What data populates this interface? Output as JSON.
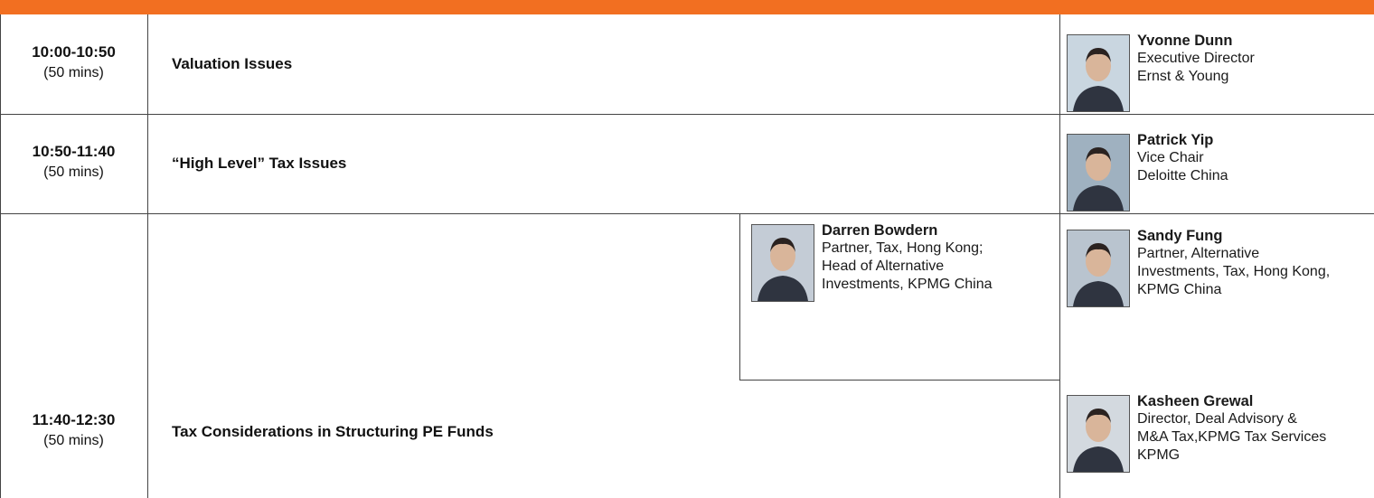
{
  "rows": [
    {
      "time": "10:00-10:50",
      "duration": "(50 mins)",
      "topic": "Valuation Issues",
      "speakers": [
        {
          "name": "Yvonne Dunn",
          "lines": [
            "Executive Director",
            "Ernst & Young"
          ]
        }
      ]
    },
    {
      "time": "10:50-11:40",
      "duration": "(50 mins)",
      "topic": "“High Level” Tax Issues",
      "speakers": [
        {
          "name": "Patrick Yip",
          "lines": [
            "Vice Chair",
            "Deloitte China"
          ]
        }
      ]
    },
    {
      "time": "11:40-12:30",
      "duration": "(50 mins)",
      "topic": "Tax Considerations in Structuring PE Funds",
      "speakers": [
        {
          "name": "Darren Bowdern",
          "lines": [
            "Partner, Tax, Hong Kong;",
            "Head of Alternative",
            "Investments, KPMG China"
          ]
        },
        {
          "name": "Sandy Fung",
          "lines": [
            "Partner, Alternative",
            "Investments, Tax, Hong Kong,",
            "KPMG China"
          ]
        },
        {
          "name": "Kasheen Grewal",
          "lines": [
            "Director, Deal Advisory &",
            "M&A Tax,KPMG Tax Services",
            "KPMG"
          ]
        }
      ]
    }
  ]
}
